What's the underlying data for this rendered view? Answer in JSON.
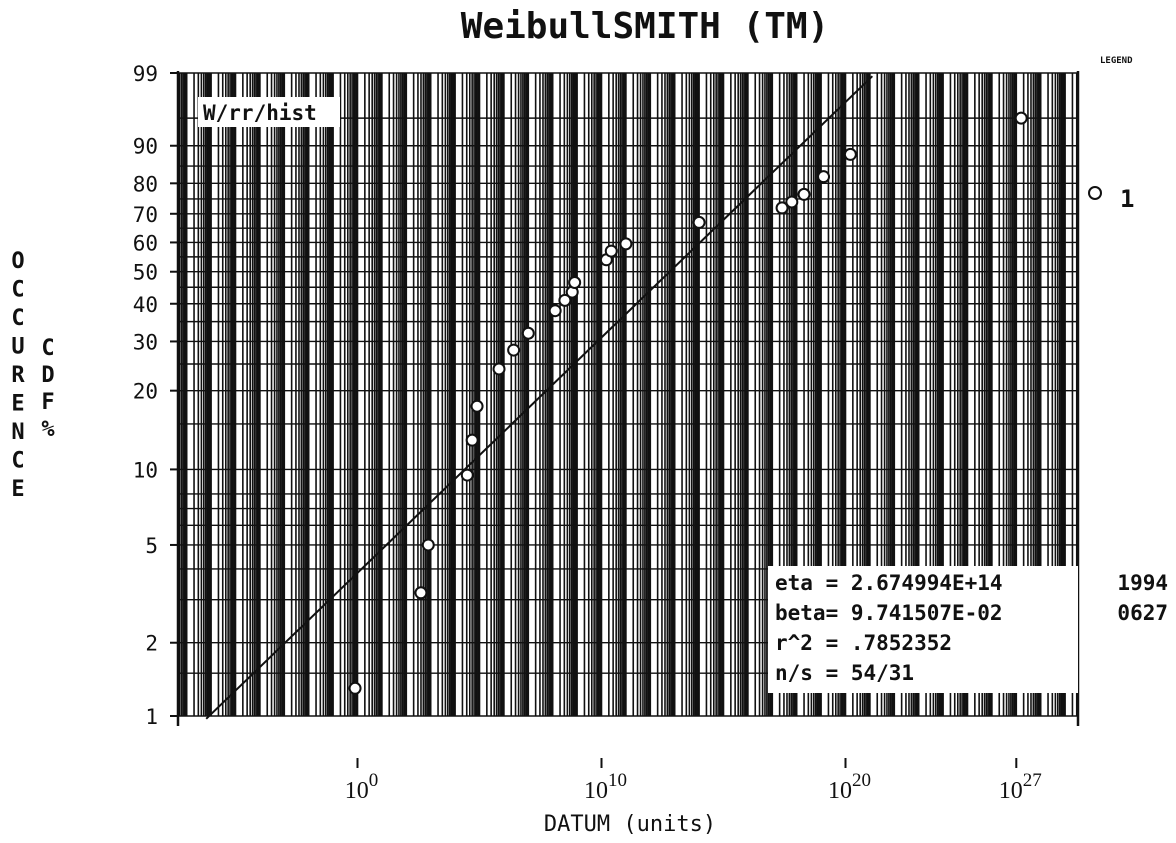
{
  "chart_data": {
    "type": "scatter",
    "title": "WeibullSMITH (TM)",
    "xlabel": "DATUM (units)",
    "ylabel_vertical": "OCCURENCE",
    "ylabel_cdf": "CDF %",
    "legend_header": "LEGEND",
    "legend_marker_label": "1",
    "corner_label": "W/rr/hist",
    "x_scale": "log",
    "x_ticks": [
      {
        "exp": 0,
        "label": "10^0"
      },
      {
        "exp": 10,
        "label": "10^10"
      },
      {
        "exp": 20,
        "label": "10^20"
      },
      {
        "exp": 27,
        "label": "10^27"
      }
    ],
    "y_scale": "weibull",
    "ylim": [
      1,
      99
    ],
    "y_ticks": [
      1,
      2,
      5,
      10,
      20,
      30,
      40,
      50,
      60,
      70,
      80,
      90,
      99
    ],
    "grid": true,
    "stats": [
      "eta = 2.674994E+14",
      "beta= 9.741507E-02",
      "r^2 = .7852352",
      "n/s = 54/31"
    ],
    "side_labels": [
      "1994",
      "0627"
    ],
    "fit_line": {
      "eta_log10": 14.4273,
      "beta": 0.09741507
    },
    "series": [
      {
        "name": "1",
        "points": [
          {
            "x_log10": -0.1,
            "y": 1.3
          },
          {
            "x_log10": 2.6,
            "y": 3.2
          },
          {
            "x_log10": 2.9,
            "y": 5.0
          },
          {
            "x_log10": 4.5,
            "y": 9.5
          },
          {
            "x_log10": 4.7,
            "y": 13
          },
          {
            "x_log10": 4.9,
            "y": 17.5
          },
          {
            "x_log10": 5.8,
            "y": 24
          },
          {
            "x_log10": 6.4,
            "y": 28
          },
          {
            "x_log10": 7.0,
            "y": 32
          },
          {
            "x_log10": 8.1,
            "y": 38
          },
          {
            "x_log10": 8.5,
            "y": 41
          },
          {
            "x_log10": 8.8,
            "y": 43.5
          },
          {
            "x_log10": 8.9,
            "y": 46.5
          },
          {
            "x_log10": 10.2,
            "y": 54
          },
          {
            "x_log10": 10.4,
            "y": 57
          },
          {
            "x_log10": 11.0,
            "y": 59.5
          },
          {
            "x_log10": 14.0,
            "y": 67
          },
          {
            "x_log10": 17.4,
            "y": 72
          },
          {
            "x_log10": 17.8,
            "y": 74
          },
          {
            "x_log10": 18.3,
            "y": 76.5
          },
          {
            "x_log10": 19.1,
            "y": 82
          },
          {
            "x_log10": 20.2,
            "y": 88
          },
          {
            "x_log10": 27.2,
            "y": 95
          }
        ]
      }
    ]
  }
}
